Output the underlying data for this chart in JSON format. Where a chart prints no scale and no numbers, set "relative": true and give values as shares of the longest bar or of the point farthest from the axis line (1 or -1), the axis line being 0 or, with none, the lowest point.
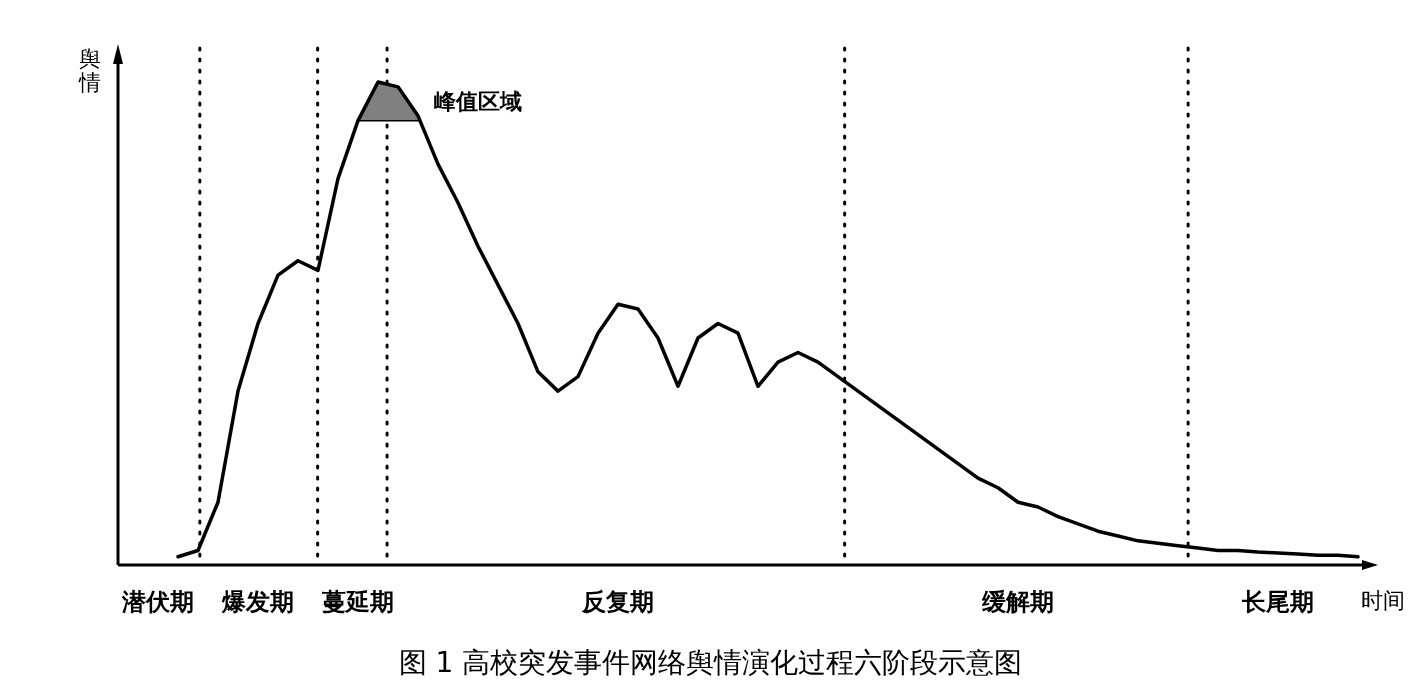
{
  "chart_data": {
    "type": "line",
    "relative": true,
    "title": "图 1  高校突发事件网络舆情演化过程六阶段示意图",
    "xlabel": "时间",
    "ylabel": "舆情",
    "tick_labels": "x",
    "categories": [
      null,
      null,
      "潜伏期",
      null,
      null,
      null,
      null,
      "爆发期",
      null,
      null,
      null,
      null,
      "蔓延期",
      null,
      null,
      null,
      null,
      null,
      null,
      null,
      null,
      null,
      null,
      null,
      null,
      "反复期",
      null,
      null,
      null,
      null,
      null,
      null,
      null,
      null,
      null,
      null,
      null,
      null,
      null,
      null,
      null,
      null,
      null,
      null,
      null,
      "缓解期",
      null,
      null,
      null,
      null,
      null,
      null,
      null,
      null,
      null,
      null,
      null,
      null,
      "长尾期",
      null,
      null,
      null,
      null
    ],
    "series": [
      {
        "color": "#000000",
        "values": [
          null,
          null,
          null,
          0.017,
          0.03,
          0.13,
          0.36,
          0.5,
          0.6,
          0.63,
          0.61,
          0.8,
          0.92,
          1,
          0.99,
          0.93,
          0.83,
          0.75,
          0.66,
          0.58,
          0.5,
          0.4,
          0.36,
          0.39,
          0.48,
          0.54,
          0.53,
          0.47,
          0.37,
          0.47,
          0.5,
          0.48,
          0.37,
          0.42,
          0.44,
          0.42,
          0.39,
          0.36,
          0.33,
          0.3,
          0.27,
          0.24,
          0.21,
          0.18,
          0.16,
          0.13,
          0.12,
          0.1,
          0.085,
          0.07,
          0.06,
          0.05,
          0.045,
          0.04,
          0.035,
          0.03,
          0.03,
          0.027,
          0.025,
          0.023,
          0.02,
          0.02,
          0.017
        ]
      }
    ],
    "annotations": [
      "峰值区域"
    ]
  }
}
